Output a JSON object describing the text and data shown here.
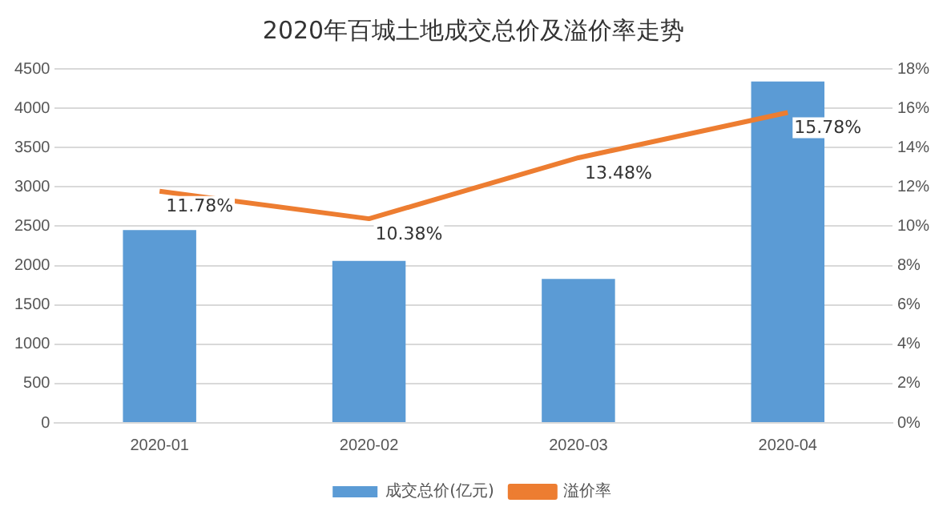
{
  "chart_data": {
    "type": "bar",
    "title": "2020年百城土地成交总价及溢价率走势",
    "categories": [
      "2020-01",
      "2020-02",
      "2020-03",
      "2020-04"
    ],
    "series": [
      {
        "name": "成交总价(亿元)",
        "color": "#5b9bd5",
        "values": [
          2450,
          2060,
          1830,
          4340
        ]
      },
      {
        "name": "溢价率",
        "type": "line",
        "axis": "y2",
        "color": "#ed7d31",
        "values": [
          11.78,
          10.38,
          13.48,
          15.78
        ],
        "value_labels": [
          "11.78%",
          "10.38%",
          "13.48%",
          "15.78%"
        ],
        "marker": "none"
      }
    ],
    "ylim": [
      0,
      4500
    ],
    "yticks": [
      0,
      500,
      1000,
      1500,
      2000,
      2500,
      3000,
      3500,
      4000,
      4500
    ],
    "y2lim": [
      0,
      18
    ],
    "y2ticks": [
      {
        "value": 0,
        "label": "0%"
      },
      {
        "value": 2,
        "label": "2%"
      },
      {
        "value": 4,
        "label": "4%"
      },
      {
        "value": 6,
        "label": "6%"
      },
      {
        "value": 8,
        "label": "8%"
      },
      {
        "value": 10,
        "label": "10%"
      },
      {
        "value": 12,
        "label": "12%"
      },
      {
        "value": 14,
        "label": "14%"
      },
      {
        "value": 16,
        "label": "16%"
      },
      {
        "value": 18,
        "label": "18%"
      }
    ],
    "grid": "y",
    "legend": "bottom"
  }
}
